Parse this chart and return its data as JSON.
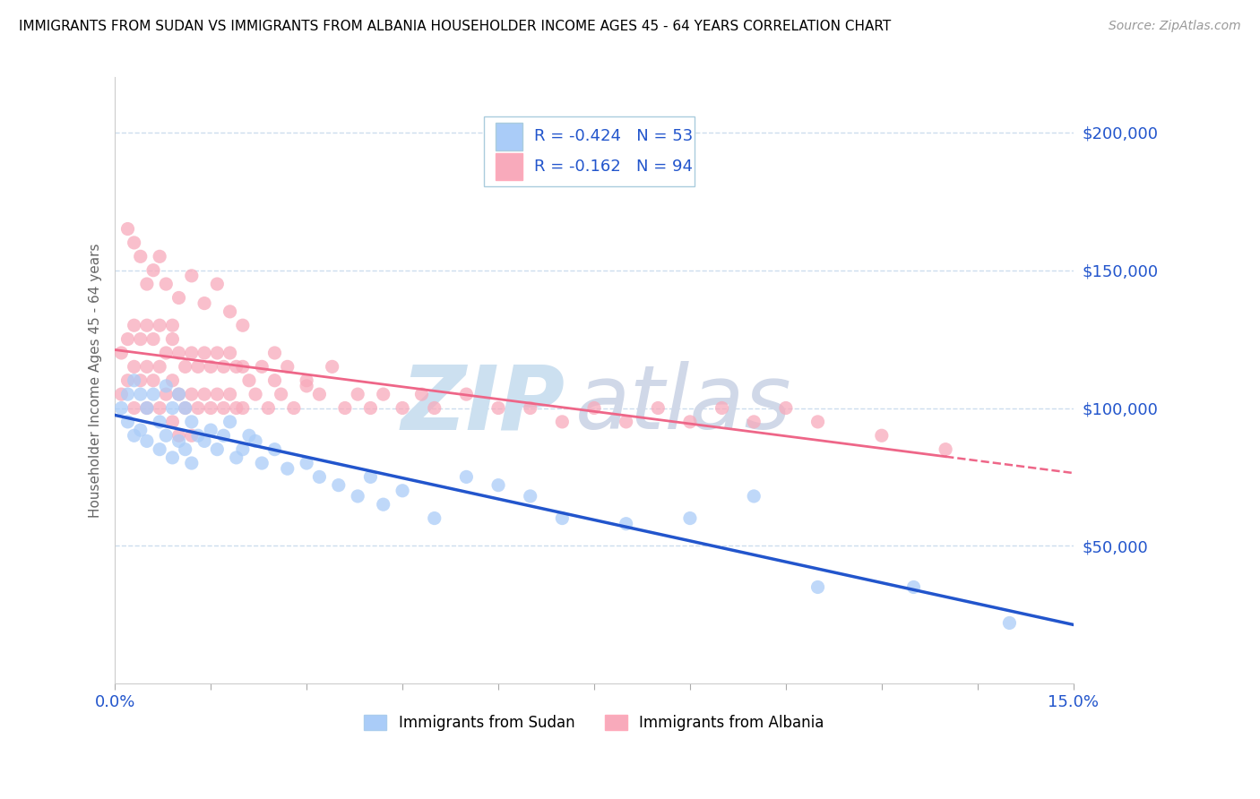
{
  "title": "IMMIGRANTS FROM SUDAN VS IMMIGRANTS FROM ALBANIA HOUSEHOLDER INCOME AGES 45 - 64 YEARS CORRELATION CHART",
  "source": "Source: ZipAtlas.com",
  "ylabel": "Householder Income Ages 45 - 64 years",
  "xlim": [
    0.0,
    0.15
  ],
  "ylim": [
    0,
    220000
  ],
  "xtick_positions": [
    0.0,
    0.015,
    0.03,
    0.045,
    0.06,
    0.075,
    0.09,
    0.105,
    0.12,
    0.135,
    0.15
  ],
  "xtick_labels": [
    "0.0%",
    "",
    "",
    "",
    "",
    "",
    "",
    "",
    "",
    "",
    "15.0%"
  ],
  "ytick_values": [
    50000,
    100000,
    150000,
    200000
  ],
  "ytick_labels": [
    "$50,000",
    "$100,000",
    "$150,000",
    "$200,000"
  ],
  "sudan_color": "#aaccf8",
  "albania_color": "#f8aabb",
  "sudan_line_color": "#2255cc",
  "albania_line_color": "#ee6688",
  "legend_text_color": "#2255cc",
  "axis_label_color": "#2255cc",
  "grid_color": "#ccddee",
  "sudan_r": -0.424,
  "sudan_n": 53,
  "albania_r": -0.162,
  "albania_n": 94,
  "title_fontsize": 11,
  "source_fontsize": 10,
  "tick_fontsize": 13,
  "legend_fontsize": 13,
  "ylabel_fontsize": 11,
  "watermark_zip_color": "#cce0f0",
  "watermark_atlas_color": "#d0d8e8",
  "sudan_scatter_x": [
    0.001,
    0.002,
    0.002,
    0.003,
    0.003,
    0.004,
    0.004,
    0.005,
    0.005,
    0.006,
    0.007,
    0.007,
    0.008,
    0.008,
    0.009,
    0.009,
    0.01,
    0.01,
    0.011,
    0.011,
    0.012,
    0.012,
    0.013,
    0.014,
    0.015,
    0.016,
    0.017,
    0.018,
    0.019,
    0.02,
    0.021,
    0.022,
    0.023,
    0.025,
    0.027,
    0.03,
    0.032,
    0.035,
    0.038,
    0.04,
    0.042,
    0.045,
    0.05,
    0.055,
    0.06,
    0.065,
    0.07,
    0.08,
    0.09,
    0.1,
    0.11,
    0.125,
    0.14
  ],
  "sudan_scatter_y": [
    100000,
    95000,
    105000,
    110000,
    90000,
    105000,
    92000,
    100000,
    88000,
    105000,
    95000,
    85000,
    108000,
    90000,
    100000,
    82000,
    105000,
    88000,
    100000,
    85000,
    95000,
    80000,
    90000,
    88000,
    92000,
    85000,
    90000,
    95000,
    82000,
    85000,
    90000,
    88000,
    80000,
    85000,
    78000,
    80000,
    75000,
    72000,
    68000,
    75000,
    65000,
    70000,
    60000,
    75000,
    72000,
    68000,
    60000,
    58000,
    60000,
    68000,
    35000,
    35000,
    22000
  ],
  "albania_scatter_x": [
    0.001,
    0.001,
    0.002,
    0.002,
    0.003,
    0.003,
    0.003,
    0.004,
    0.004,
    0.005,
    0.005,
    0.005,
    0.006,
    0.006,
    0.007,
    0.007,
    0.007,
    0.008,
    0.008,
    0.009,
    0.009,
    0.009,
    0.01,
    0.01,
    0.01,
    0.011,
    0.011,
    0.012,
    0.012,
    0.012,
    0.013,
    0.013,
    0.014,
    0.014,
    0.015,
    0.015,
    0.016,
    0.016,
    0.017,
    0.017,
    0.018,
    0.018,
    0.019,
    0.019,
    0.02,
    0.02,
    0.021,
    0.022,
    0.023,
    0.024,
    0.025,
    0.026,
    0.027,
    0.028,
    0.03,
    0.032,
    0.034,
    0.036,
    0.038,
    0.04,
    0.042,
    0.045,
    0.048,
    0.05,
    0.055,
    0.06,
    0.065,
    0.07,
    0.075,
    0.08,
    0.085,
    0.09,
    0.095,
    0.1,
    0.105,
    0.11,
    0.12,
    0.13,
    0.002,
    0.004,
    0.006,
    0.008,
    0.01,
    0.012,
    0.014,
    0.016,
    0.018,
    0.02,
    0.025,
    0.03,
    0.003,
    0.005,
    0.007,
    0.009
  ],
  "albania_scatter_y": [
    120000,
    105000,
    125000,
    110000,
    130000,
    115000,
    100000,
    125000,
    110000,
    130000,
    115000,
    100000,
    125000,
    110000,
    130000,
    115000,
    100000,
    120000,
    105000,
    125000,
    110000,
    95000,
    120000,
    105000,
    90000,
    115000,
    100000,
    120000,
    105000,
    90000,
    115000,
    100000,
    120000,
    105000,
    115000,
    100000,
    120000,
    105000,
    115000,
    100000,
    120000,
    105000,
    115000,
    100000,
    115000,
    100000,
    110000,
    105000,
    115000,
    100000,
    110000,
    105000,
    115000,
    100000,
    110000,
    105000,
    115000,
    100000,
    105000,
    100000,
    105000,
    100000,
    105000,
    100000,
    105000,
    100000,
    100000,
    95000,
    100000,
    95000,
    100000,
    95000,
    100000,
    95000,
    100000,
    95000,
    90000,
    85000,
    165000,
    155000,
    150000,
    145000,
    140000,
    148000,
    138000,
    145000,
    135000,
    130000,
    120000,
    108000,
    160000,
    145000,
    155000,
    130000
  ]
}
